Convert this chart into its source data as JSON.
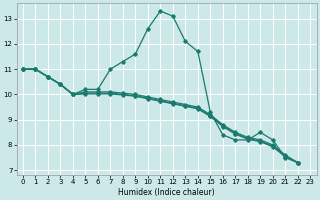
{
  "xlabel": "Humidex (Indice chaleur)",
  "bg_color": "#cce8e8",
  "grid_color": "#ffffff",
  "line_color": "#1a7a6e",
  "xlim_min": -0.5,
  "xlim_max": 23.5,
  "ylim_min": 6.8,
  "ylim_max": 13.6,
  "yticks": [
    7,
    8,
    9,
    10,
    11,
    12,
    13
  ],
  "xticks": [
    0,
    1,
    2,
    3,
    4,
    5,
    6,
    7,
    8,
    9,
    10,
    11,
    12,
    13,
    14,
    15,
    16,
    17,
    18,
    19,
    20,
    21,
    22,
    23
  ],
  "curve1_x": [
    0,
    1,
    2,
    3,
    4,
    5,
    6,
    7,
    8,
    9,
    10,
    11,
    12,
    13,
    14,
    15,
    16,
    17,
    18,
    19,
    20,
    21,
    22
  ],
  "curve1_y": [
    11.0,
    11.0,
    10.7,
    10.4,
    10.0,
    10.2,
    10.2,
    11.0,
    11.3,
    11.6,
    12.6,
    13.3,
    13.1,
    12.1,
    11.7,
    9.3,
    8.4,
    8.2,
    8.2,
    8.5,
    8.2,
    7.5,
    7.3
  ],
  "curve2_x": [
    0,
    1,
    2,
    3,
    4,
    5,
    6,
    7,
    8,
    9,
    10,
    11,
    12,
    13,
    14,
    15,
    16,
    17,
    18,
    19,
    20,
    21,
    22
  ],
  "curve2_y": [
    11.0,
    11.0,
    10.7,
    10.4,
    10.0,
    10.1,
    10.1,
    10.1,
    10.05,
    10.0,
    9.9,
    9.8,
    9.7,
    9.6,
    9.5,
    9.2,
    8.8,
    8.5,
    8.3,
    8.2,
    8.0,
    7.6,
    7.3
  ],
  "curve3_x": [
    0,
    1,
    2,
    3,
    4,
    5,
    6,
    7,
    8,
    9,
    10,
    11,
    12,
    13,
    14,
    15,
    16,
    17,
    18,
    19,
    20,
    21,
    22
  ],
  "curve3_y": [
    11.0,
    11.0,
    10.7,
    10.4,
    10.0,
    10.05,
    10.05,
    10.05,
    10.0,
    9.95,
    9.85,
    9.75,
    9.65,
    9.55,
    9.45,
    9.15,
    8.75,
    8.45,
    8.25,
    8.15,
    7.95,
    7.55,
    7.3
  ],
  "curve4_x": [
    0,
    1,
    2,
    3,
    4,
    5,
    6,
    7,
    8,
    9,
    10,
    11,
    12,
    13,
    14,
    15,
    16,
    17,
    18,
    19,
    20,
    21,
    22
  ],
  "curve4_y": [
    11.0,
    11.0,
    10.7,
    10.4,
    10.0,
    10.02,
    10.02,
    10.02,
    9.98,
    9.93,
    9.83,
    9.73,
    9.63,
    9.53,
    9.43,
    9.13,
    8.73,
    8.43,
    8.23,
    8.13,
    7.93,
    7.53,
    7.3
  ]
}
